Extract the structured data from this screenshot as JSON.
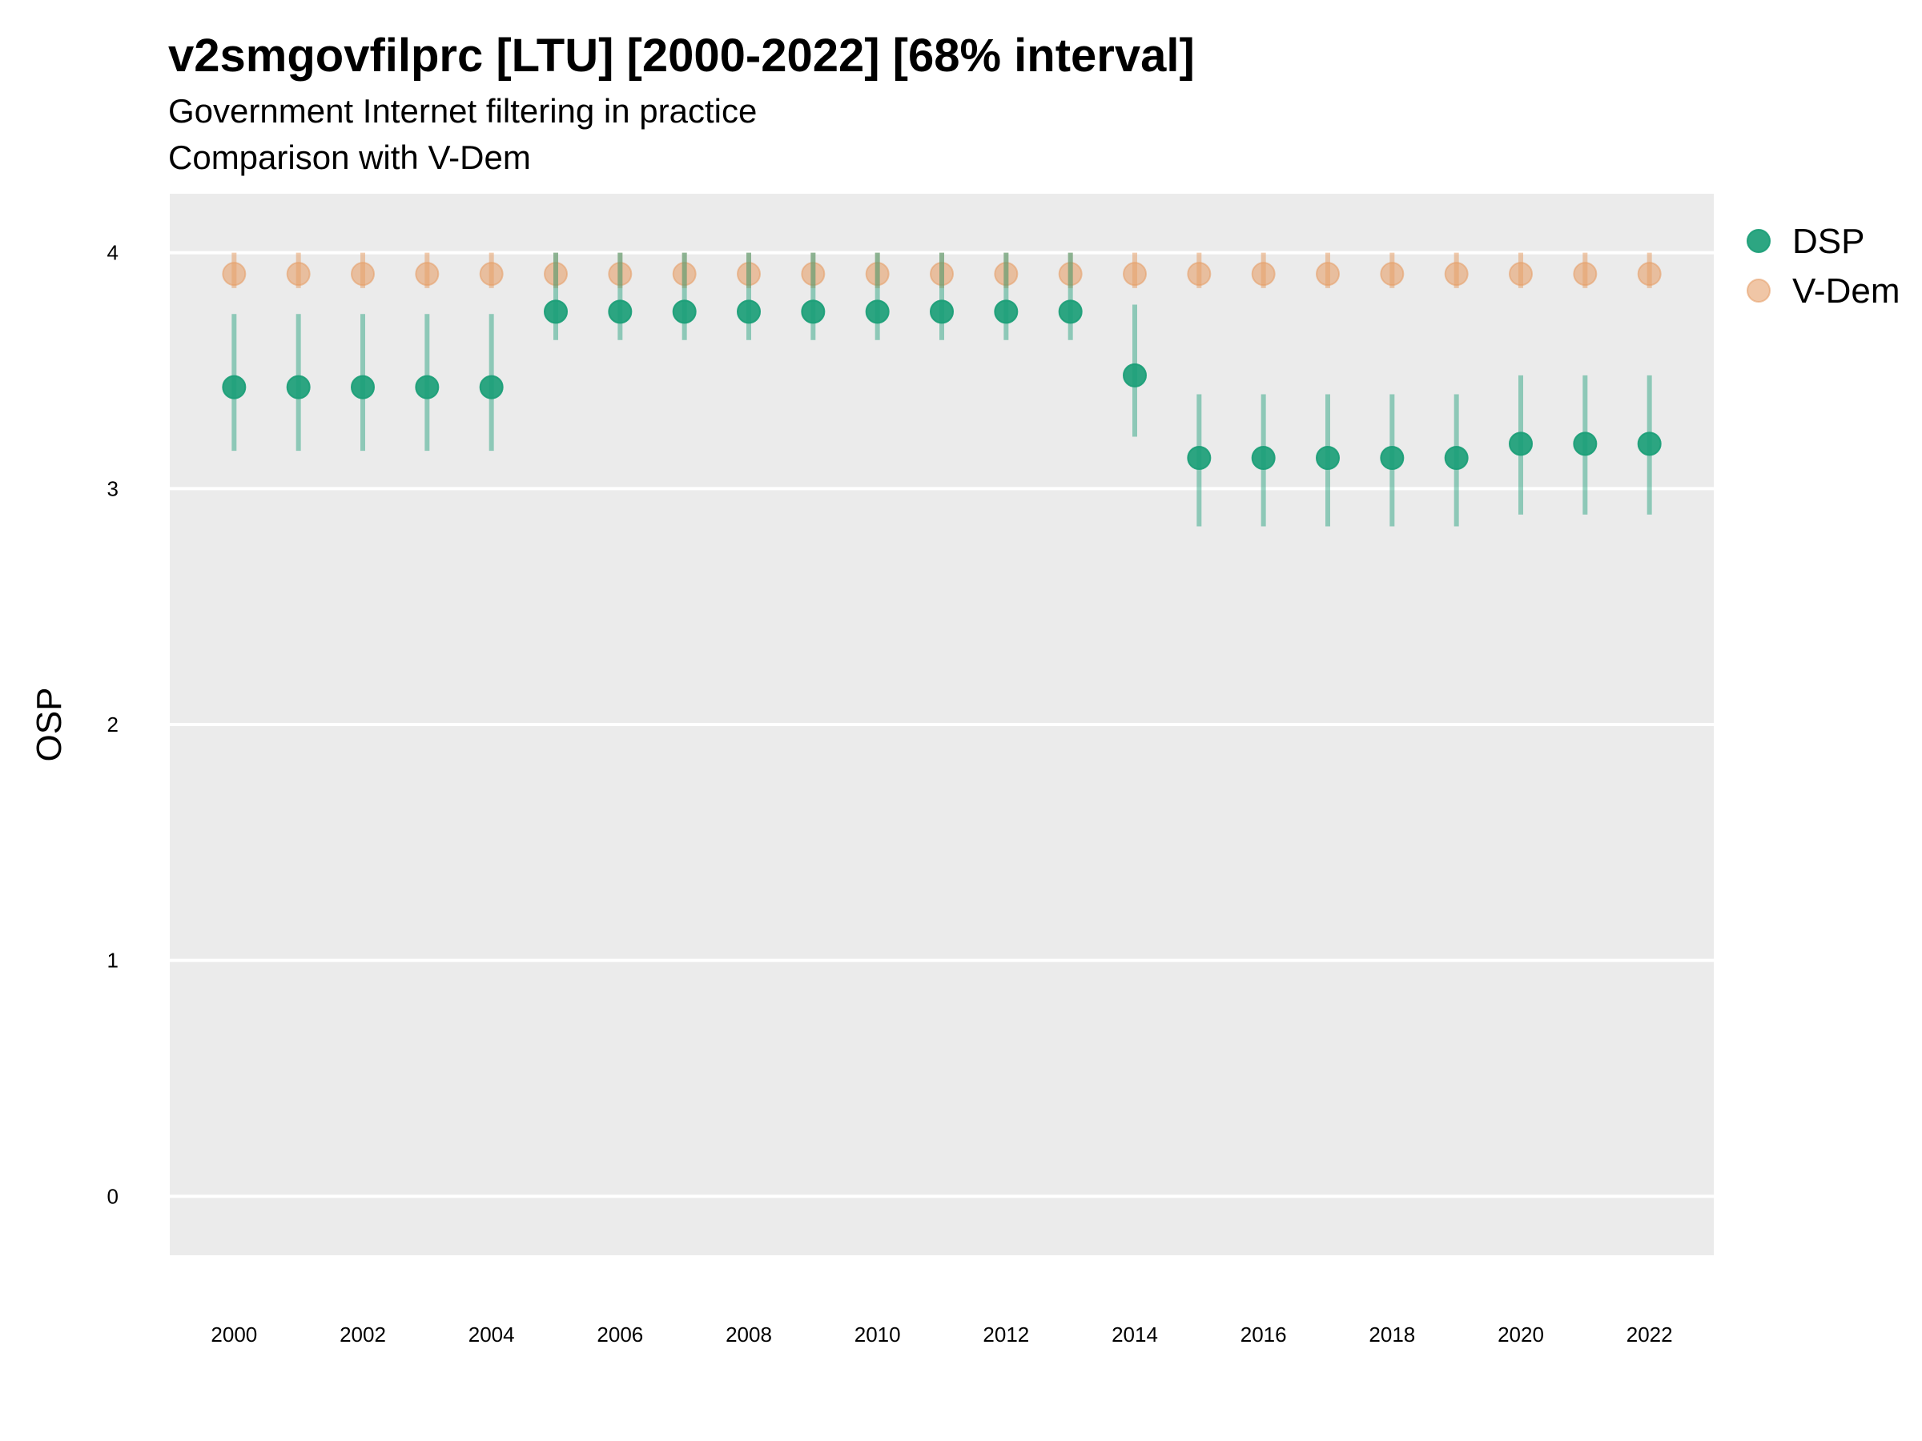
{
  "title": "v2smgovfilprc [LTU] [2000-2022] [68% interval]",
  "subtitle_line1": "Government Internet filtering in practice",
  "subtitle_line2": "Comparison with V-Dem",
  "colors": {
    "panel": "#ebebeb",
    "grid": "#ffffff",
    "dsp": "#1b9e77",
    "vdem": "#e6a06a"
  },
  "chart_data": {
    "type": "scatter",
    "title": "v2smgovfilprc [LTU] [2000-2022] [68% interval]",
    "subtitle": "Government Internet filtering in practice / Comparison with V-Dem",
    "xlabel": "",
    "ylabel": "OSP",
    "xlim": [
      1999.0,
      2023.0
    ],
    "ylim": [
      -0.25,
      4.25
    ],
    "x_ticks": [
      2000,
      2002,
      2004,
      2006,
      2008,
      2010,
      2012,
      2014,
      2016,
      2018,
      2020,
      2022
    ],
    "y_ticks": [
      0,
      1,
      2,
      3,
      4
    ],
    "grid": true,
    "legend_position": "right",
    "series": [
      {
        "name": "DSP",
        "x": [
          2000,
          2001,
          2002,
          2003,
          2004,
          2005,
          2006,
          2007,
          2008,
          2009,
          2010,
          2011,
          2012,
          2013,
          2014,
          2015,
          2016,
          2017,
          2018,
          2019,
          2020,
          2021,
          2022
        ],
        "y": [
          3.43,
          3.43,
          3.43,
          3.43,
          3.43,
          3.75,
          3.75,
          3.75,
          3.75,
          3.75,
          3.75,
          3.75,
          3.75,
          3.75,
          3.48,
          3.13,
          3.13,
          3.13,
          3.13,
          3.13,
          3.19,
          3.19,
          3.19
        ],
        "lower": [
          3.16,
          3.16,
          3.16,
          3.16,
          3.16,
          3.63,
          3.63,
          3.63,
          3.63,
          3.63,
          3.63,
          3.63,
          3.63,
          3.63,
          3.22,
          2.84,
          2.84,
          2.84,
          2.84,
          2.84,
          2.89,
          2.89,
          2.89
        ],
        "upper": [
          3.74,
          3.74,
          3.74,
          3.74,
          3.74,
          4.0,
          4.0,
          4.0,
          4.0,
          4.0,
          4.0,
          4.0,
          4.0,
          4.0,
          3.78,
          3.4,
          3.4,
          3.4,
          3.4,
          3.4,
          3.48,
          3.48,
          3.48
        ]
      },
      {
        "name": "V-Dem",
        "x": [
          2000,
          2001,
          2002,
          2003,
          2004,
          2005,
          2006,
          2007,
          2008,
          2009,
          2010,
          2011,
          2012,
          2013,
          2014,
          2015,
          2016,
          2017,
          2018,
          2019,
          2020,
          2021,
          2022
        ],
        "y": [
          3.91,
          3.91,
          3.91,
          3.91,
          3.91,
          3.91,
          3.91,
          3.91,
          3.91,
          3.91,
          3.91,
          3.91,
          3.91,
          3.91,
          3.91,
          3.91,
          3.91,
          3.91,
          3.91,
          3.91,
          3.91,
          3.91,
          3.91
        ],
        "lower": [
          3.85,
          3.85,
          3.85,
          3.85,
          3.85,
          3.85,
          3.85,
          3.85,
          3.85,
          3.85,
          3.85,
          3.85,
          3.85,
          3.85,
          3.85,
          3.85,
          3.85,
          3.85,
          3.85,
          3.85,
          3.85,
          3.85,
          3.85
        ],
        "upper": [
          4.0,
          4.0,
          4.0,
          4.0,
          4.0,
          4.0,
          4.0,
          4.0,
          4.0,
          4.0,
          4.0,
          4.0,
          4.0,
          4.0,
          4.0,
          4.0,
          4.0,
          4.0,
          4.0,
          4.0,
          4.0,
          4.0,
          4.0
        ]
      }
    ]
  }
}
